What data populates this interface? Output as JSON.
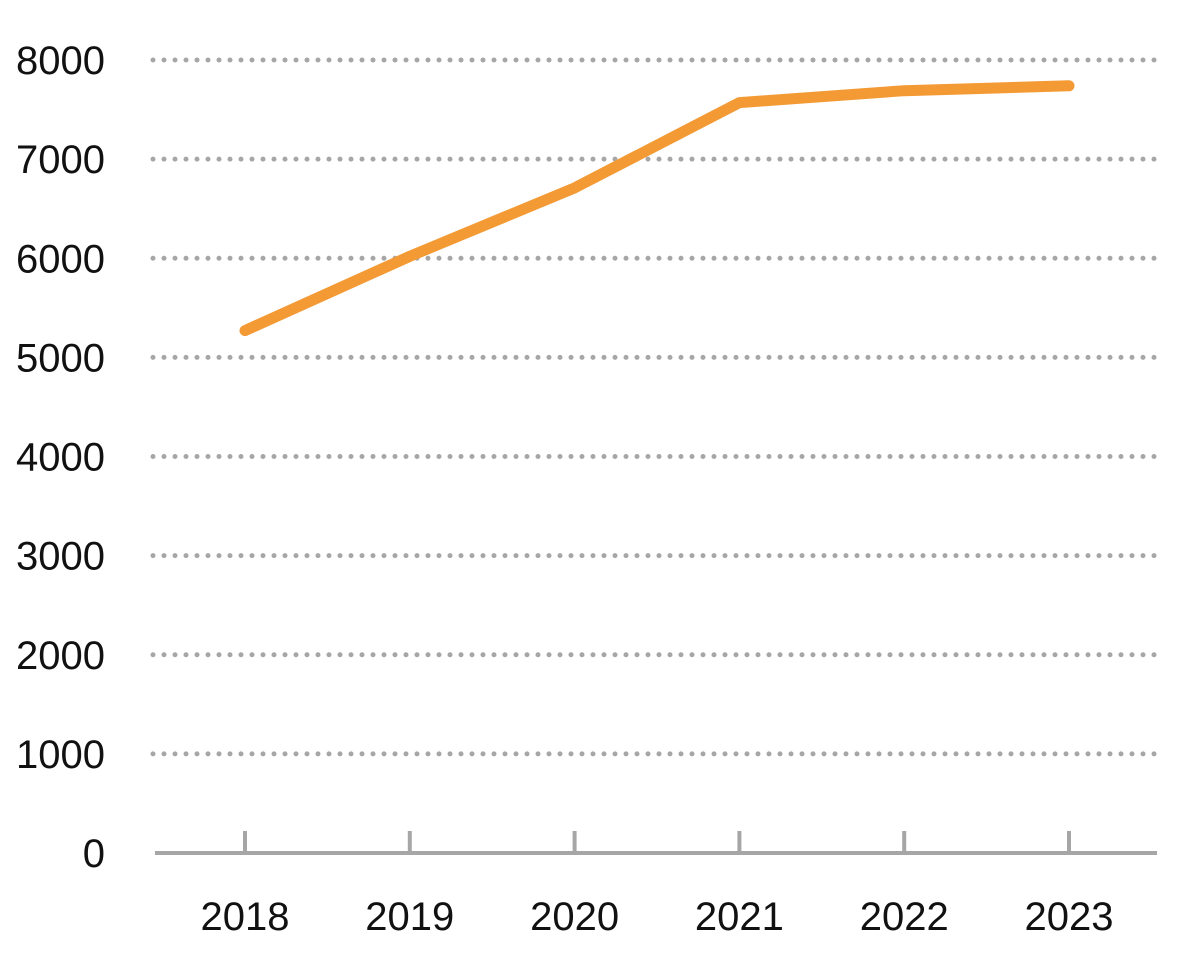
{
  "chart_data": {
    "type": "line",
    "title": "",
    "xlabel": "",
    "ylabel": "",
    "categories": [
      "2018",
      "2019",
      "2020",
      "2021",
      "2022",
      "2023"
    ],
    "series": [
      {
        "values": [
          5270,
          6020,
          6710,
          7570,
          7690,
          7740
        ]
      }
    ],
    "ylim": [
      0,
      8000
    ],
    "yticks": [
      "0",
      "1000",
      "2000",
      "3000",
      "4000",
      "5000",
      "6000",
      "7000",
      "8000"
    ],
    "grid": "horizontal dotted",
    "legend": "none",
    "colors": {
      "line": "#F39A34",
      "grid": "#A6A6A6",
      "axis": "#A6A6A6",
      "text": "#111111"
    }
  }
}
